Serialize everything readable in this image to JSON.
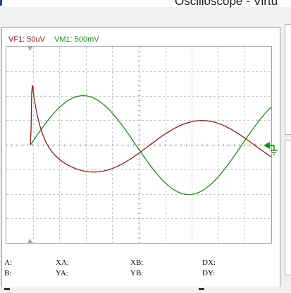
{
  "window": {
    "title": "Oscilloscope - Virtu"
  },
  "channels": {
    "vf1": {
      "label": "VF1: 50uV",
      "color": "#8b1a1a"
    },
    "vm1": {
      "label": "VM1: 500mV",
      "color": "#1e8b1e"
    }
  },
  "readouts": {
    "a": "A:",
    "b": "B:",
    "xa": "XA:",
    "ya": "YA:",
    "xb": "XB:",
    "yb": "YB:",
    "dx": "DX:",
    "dy": "DY:"
  },
  "icons": {
    "trigger_marker": "triangle-marker-icon",
    "ground_marker": "ground-arrow-icon"
  },
  "chart_data": {
    "type": "line",
    "grid": true,
    "divisions": {
      "x": 10,
      "y": 8
    },
    "series": [
      {
        "name": "VF1",
        "color": "#8b1a1a"
      },
      {
        "name": "VM1",
        "color": "#1e8b1e"
      }
    ]
  }
}
